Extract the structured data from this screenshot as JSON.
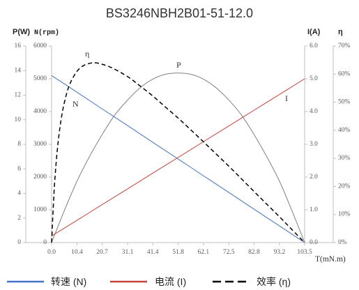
{
  "chart_data": {
    "type": "line",
    "title": "BS3246NBH2B01-51-12.0",
    "xlabel": "T(mN.m)",
    "xlim": [
      0,
      103.5
    ],
    "x_ticks": [
      "0.0",
      "10.4",
      "20.7",
      "31.1",
      "41.4",
      "51.8",
      "62.1",
      "72.5",
      "82.8",
      "93.2",
      "103.5"
    ],
    "axes": [
      {
        "label": "P(W)",
        "lim": [
          0,
          16
        ],
        "ticks": [
          "0",
          "2",
          "4",
          "6",
          "8",
          "10",
          "12",
          "14",
          "16"
        ]
      },
      {
        "label": "N(rpm)",
        "lim": [
          0,
          6000
        ],
        "ticks": [
          "0",
          "1000",
          "2000",
          "3000",
          "4000",
          "5000",
          "6000"
        ]
      },
      {
        "label": "I(A)",
        "lim": [
          0,
          6
        ],
        "ticks": [
          "0.0",
          "1.0",
          "2.0",
          "3.0",
          "4.0",
          "5.0",
          "6.0"
        ]
      },
      {
        "label": "η",
        "lim": [
          0,
          70
        ],
        "ticks": [
          "0%",
          "10%",
          "20%",
          "30%",
          "40%",
          "50%",
          "60%",
          "70%"
        ]
      }
    ],
    "series": [
      {
        "name": "N",
        "axis": 1,
        "color": "#4472C4",
        "dashed": false,
        "x": [
          0,
          10.4,
          20.7,
          31.1,
          41.4,
          51.8,
          62.1,
          72.5,
          82.8,
          93.2,
          103.5
        ],
        "y": [
          5100,
          4590,
          4080,
          3570,
          3060,
          2550,
          2040,
          1530,
          1020,
          510,
          0
        ]
      },
      {
        "name": "P",
        "axis": 0,
        "color": "#808080",
        "dashed": false,
        "x": [
          0,
          5.2,
          10.4,
          15.5,
          20.7,
          25.9,
          31.1,
          36.2,
          41.4,
          46.6,
          51.8,
          56.9,
          62.1,
          67.3,
          72.5,
          77.6,
          82.8,
          88,
          93.2,
          98.3,
          103.5
        ],
        "y": [
          0,
          2.6,
          5.0,
          7.0,
          8.8,
          10.4,
          11.6,
          12.6,
          13.3,
          13.7,
          13.8,
          13.7,
          13.3,
          12.6,
          11.6,
          10.4,
          8.8,
          7.0,
          5.0,
          2.6,
          0
        ]
      },
      {
        "name": "I",
        "axis": 2,
        "color": "#C9413C",
        "dashed": false,
        "x": [
          0,
          10.4,
          20.7,
          31.1,
          41.4,
          51.8,
          62.1,
          72.5,
          82.8,
          93.2,
          103.5
        ],
        "y": [
          0.2,
          0.68,
          1.16,
          1.64,
          2.12,
          2.6,
          3.08,
          3.56,
          4.04,
          4.52,
          5.0
        ]
      },
      {
        "name": "η",
        "axis": 3,
        "color": "#000000",
        "dashed": true,
        "x": [
          0,
          1,
          2,
          3,
          4,
          5,
          6.5,
          8,
          10.4,
          13,
          16,
          18,
          20.7,
          25,
          31.1,
          36,
          41.4,
          46,
          51.8,
          57,
          62.1,
          67,
          72.5,
          77,
          82.8,
          88,
          93.2,
          98,
          103.5
        ],
        "y": [
          0,
          17.9,
          29.8,
          38.2,
          44.4,
          49.0,
          54.1,
          57.5,
          61.0,
          63.0,
          63.9,
          64.0,
          63.5,
          62.1,
          59.1,
          55.9,
          52.2,
          48.7,
          44.3,
          40.1,
          35.9,
          31.8,
          27.2,
          23.3,
          18.2,
          13.7,
          9.2,
          4.9,
          0
        ]
      }
    ],
    "legend": [
      {
        "label": "转速 (N)",
        "series": 0
      },
      {
        "label": "电流 (I)",
        "series": 2
      },
      {
        "label": "效率 (η)",
        "series": 3
      }
    ],
    "legend_position": "bottom",
    "grid": false
  }
}
